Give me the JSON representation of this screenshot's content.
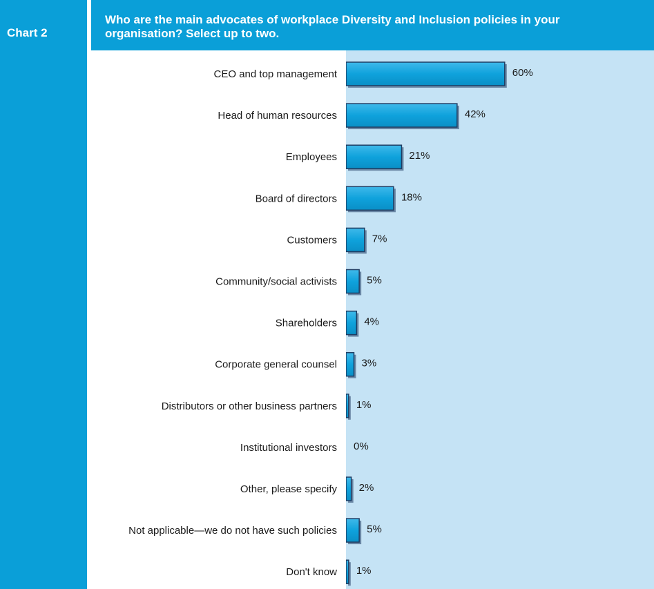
{
  "chart_tag": "Chart 2",
  "colors": {
    "accent": "#0a9fd8",
    "plot_background": "#c5e3f5",
    "bar_fill": "#0a9fd8",
    "bar_outline": "#1f3d63"
  },
  "chart_data": {
    "type": "bar",
    "orientation": "horizontal",
    "title": "Who are the main advocates of workplace Diversity and Inclusion policies in your organisation? Select up to two.",
    "xlabel": "",
    "ylabel": "",
    "xlim": [
      0,
      100
    ],
    "grid": false,
    "legend": "none",
    "categories": [
      "CEO and top management",
      "Head of human resources",
      "Employees",
      "Board of directors",
      "Customers",
      "Community/social activists",
      "Shareholders",
      "Corporate general counsel",
      "Distributors or other business partners",
      "Institutional investors",
      "Other, please specify",
      "Not applicable—we do not have such policies",
      "Don't know"
    ],
    "values": [
      60,
      42,
      21,
      18,
      7,
      5,
      4,
      3,
      1,
      0,
      2,
      5,
      1
    ],
    "value_labels": [
      "60%",
      "42%",
      "21%",
      "18%",
      "7%",
      "5%",
      "4%",
      "3%",
      "1%",
      "0%",
      "2%",
      "5%",
      "1%"
    ]
  }
}
